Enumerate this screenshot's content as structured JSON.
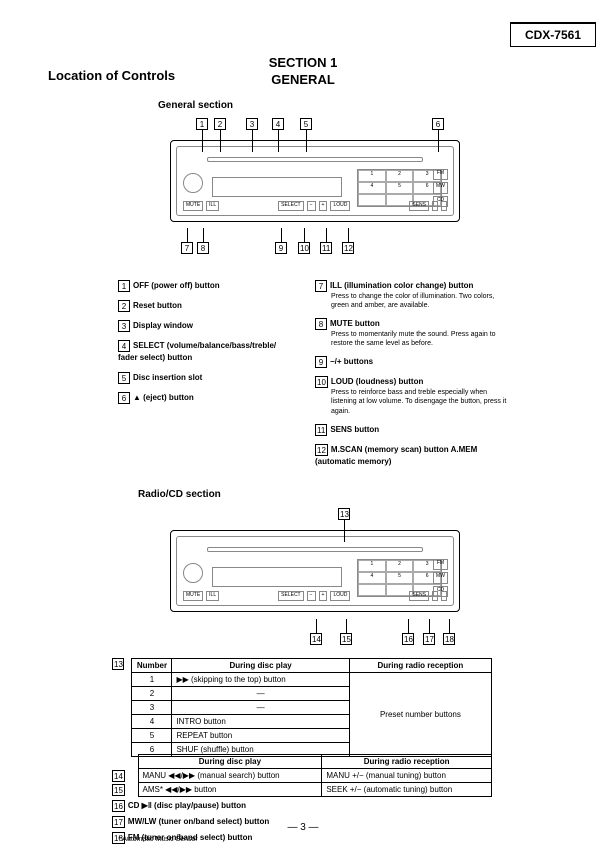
{
  "model": "CDX-7561",
  "section_line1": "SECTION 1",
  "section_line2": "GENERAL",
  "location_heading": "Location of Controls",
  "general_section_label": "General section",
  "radio_cd_label": "Radio/CD section",
  "page_number": "— 3 —",
  "footnote": "* Automatic Music Sensor",
  "top_callouts_1": [
    "1",
    "2",
    "3",
    "4",
    "5",
    "6"
  ],
  "bot_callouts_1": [
    "7",
    "8",
    "9",
    "10",
    "11",
    "12"
  ],
  "top_callouts_2": [
    "13"
  ],
  "bot_callouts_2": [
    "14",
    "15",
    "16",
    "17",
    "18"
  ],
  "legend_left": [
    {
      "n": "1",
      "t": "OFF (power off) button"
    },
    {
      "n": "2",
      "t": "Reset button"
    },
    {
      "n": "3",
      "t": "Display window"
    },
    {
      "n": "4",
      "t": "SELECT (volume/balance/bass/treble/ fader select) button"
    },
    {
      "n": "5",
      "t": "Disc insertion slot"
    },
    {
      "n": "6",
      "t": "▲ (eject) button"
    }
  ],
  "legend_right": [
    {
      "n": "7",
      "t": "ILL (illumination color change) button",
      "d": "Press to change the color of illumination. Two colors, green and amber, are available."
    },
    {
      "n": "8",
      "t": "MUTE button",
      "d": "Press to momentarily mute the sound. Press again to restore the same level as before."
    },
    {
      "n": "9",
      "t": "−/+ buttons"
    },
    {
      "n": "10",
      "t": "LOUD (loudness) button",
      "d": "Press to reinforce bass and treble especially when listening at low volume. To disengage the button, press it again."
    },
    {
      "n": "11",
      "t": "SENS button"
    },
    {
      "n": "12",
      "t": "M.SCAN (memory scan) button A.MEM (automatic memory)"
    }
  ],
  "table13": {
    "callout": "13",
    "headers": [
      "Number",
      "During disc play",
      "During radio reception"
    ],
    "rows": [
      [
        "1",
        "▶▶ (skipping to the top) button"
      ],
      [
        "2",
        "—"
      ],
      [
        "3",
        "—"
      ],
      [
        "4",
        "INTRO button"
      ],
      [
        "5",
        "REPEAT button"
      ],
      [
        "6",
        "SHUF (shuffle) button"
      ]
    ],
    "right_merged": "Preset number buttons"
  },
  "table1415": {
    "headers": [
      "",
      "During disc play",
      "During radio reception"
    ],
    "rows": [
      {
        "n": "14",
        "c1": "MANU ◀◀/▶▶ (manual search) button",
        "c2": "MANU +/− (manual tuning) button"
      },
      {
        "n": "15",
        "c1": "AMS* ◀◀/▶▶ button",
        "c2": "SEEK +/− (automatic tuning) button"
      }
    ]
  },
  "simple_list": [
    {
      "n": "16",
      "t": "CD ▶‖ (disc play/pause) button"
    },
    {
      "n": "17",
      "t": "MW/LW (tuner on/band select) button"
    },
    {
      "n": "18",
      "t": "FM (tuner on/band select) button"
    }
  ]
}
